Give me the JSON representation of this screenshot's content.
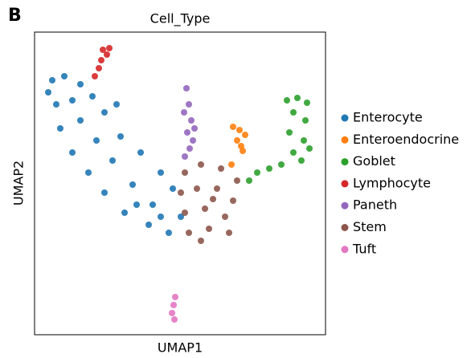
{
  "panel_label": "B",
  "chart_data": {
    "type": "scatter",
    "title": "Cell_Type",
    "xlabel": "UMAP1",
    "ylabel": "UMAP2",
    "xlim": [
      0,
      362
    ],
    "ylim": [
      0,
      377
    ],
    "legend": "right-outside",
    "series": [
      {
        "name": "Enterocyte",
        "color": "#1f77b4",
        "x": [
          22,
          37,
          57,
          27,
          47,
          72,
          32,
          57,
          87,
          47,
          77,
          107,
          67,
          97,
          132,
          87,
          122,
          157,
          112,
          147,
          172,
          142,
          167,
          182,
          157,
          17,
          102,
          127
        ],
        "y": [
          317,
          322,
          312,
          287,
          292,
          297,
          257,
          267,
          277,
          227,
          242,
          247,
          202,
          217,
          227,
          177,
          187,
          202,
          152,
          162,
          182,
          137,
          127,
          147,
          147,
          302,
          287,
          162
        ]
      },
      {
        "name": "Enteroendocrine",
        "color": "#ff7f0e",
        "x": [
          247,
          255,
          262,
          252,
          257,
          259,
          245
        ],
        "y": [
          259,
          255,
          249,
          242,
          235,
          229,
          212
        ]
      },
      {
        "name": "Goblet",
        "color": "#2ca02c",
        "x": [
          327,
          339,
          322,
          337,
          317,
          335,
          322,
          332,
          307,
          292,
          277,
          314,
          342,
          267
        ],
        "y": [
          295,
          289,
          277,
          267,
          252,
          242,
          227,
          217,
          212,
          207,
          202,
          292,
          232,
          192
        ]
      },
      {
        "name": "Lymphocyte",
        "color": "#d62728",
        "x": [
          85,
          90,
          83,
          80,
          75,
          93
        ],
        "y": [
          355,
          349,
          342,
          332,
          322,
          357
        ]
      },
      {
        "name": "Paneth",
        "color": "#9467bd",
        "x": [
          189,
          192,
          195,
          190,
          197,
          193,
          187,
          199,
          186
        ],
        "y": [
          307,
          287,
          267,
          252,
          242,
          232,
          222,
          257,
          277
        ]
      },
      {
        "name": "Stem",
        "color": "#8c564b",
        "x": [
          187,
          207,
          232,
          252,
          182,
          202,
          227,
          247,
          187,
          212,
          237,
          192,
          217,
          242,
          207,
          222
        ],
        "y": [
          202,
          212,
          207,
          192,
          177,
          182,
          182,
          167,
          152,
          157,
          147,
          127,
          132,
          127,
          117,
          169
        ]
      },
      {
        "name": "Tuft",
        "color": "#e377c2",
        "x": [
          175,
          173,
          171,
          174
        ],
        "y": [
          47,
          37,
          27,
          19
        ]
      }
    ]
  }
}
